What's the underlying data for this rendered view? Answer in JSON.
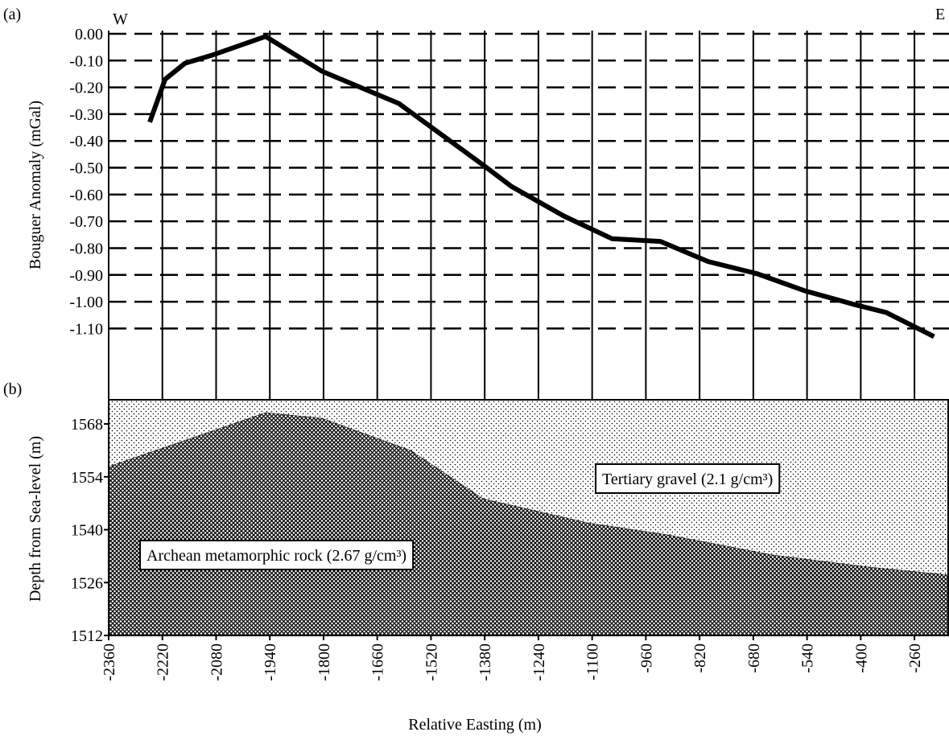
{
  "chart_data": [
    {
      "type": "line",
      "panel_label": "(a)",
      "ylabel": "Bouguer Anomaly (mGal)",
      "annotations": [
        "W",
        "E"
      ],
      "x": [
        -2253,
        -2213,
        -2161,
        -2091,
        -1951,
        -1804,
        -1604,
        -1384,
        -1310,
        -1174,
        -1048,
        -922,
        -798,
        -671,
        -544,
        -418,
        -334,
        -209
      ],
      "values": [
        -0.33,
        -0.17,
        -0.11,
        -0.08,
        -0.01,
        -0.14,
        -0.26,
        -0.49,
        -0.57,
        -0.68,
        -0.765,
        -0.775,
        -0.85,
        -0.895,
        -0.96,
        -1.01,
        -1.04,
        -1.13
      ],
      "color": "#000000",
      "ylim": [
        -1.36,
        0.0
      ],
      "yticks": [
        {
          "value": 0,
          "label": "0.00"
        },
        {
          "value": -0.1,
          "label": "-0.10"
        },
        {
          "value": -0.2,
          "label": "-0.20"
        },
        {
          "value": -0.3,
          "label": "-0.30"
        },
        {
          "value": -0.4,
          "label": "-0.40"
        },
        {
          "value": -0.5,
          "label": "-0.50"
        },
        {
          "value": -0.6,
          "label": "-0.60"
        },
        {
          "value": -0.7,
          "label": "-0.70"
        },
        {
          "value": -0.8,
          "label": "-0.80"
        },
        {
          "value": -0.9,
          "label": "-0.90"
        },
        {
          "value": -1.0,
          "label": "-1.00"
        },
        {
          "value": -1.1,
          "label": "-1.10"
        }
      ],
      "grid": true
    },
    {
      "type": "area",
      "panel_label": "(b)",
      "xlabel": "Relative Easting (m)",
      "ylabel": "Depth from Sea-level (m)",
      "annotations": [
        "Tertiary gravel (2.1 g/cm³)",
        "Archean metamorphic rock (2.67 g/cm³)"
      ],
      "x": [
        -2360,
        -1951,
        -1804,
        -1573,
        -1384,
        -1111,
        -901,
        -629,
        -378,
        -170
      ],
      "values": [
        1556.7,
        1571.0,
        1569.5,
        1561.0,
        1548.2,
        1541.8,
        1538.6,
        1533.3,
        1530.1,
        1528.0
      ],
      "color": "#000000",
      "xlim": [
        -2360,
        -170
      ],
      "xticks": [
        -2360,
        -2220,
        -2080,
        -1940,
        -1800,
        -1660,
        -1520,
        -1380,
        -1240,
        -1100,
        -960,
        -820,
        -680,
        -540,
        -400,
        -260
      ],
      "ylim": [
        1512,
        1574.4
      ],
      "yticks": [
        1512,
        1526,
        1540,
        1554,
        1568
      ]
    }
  ]
}
